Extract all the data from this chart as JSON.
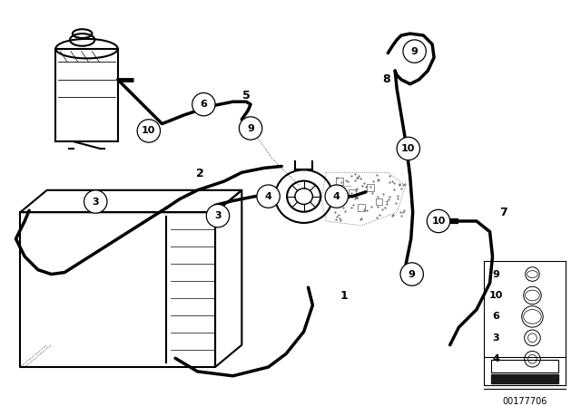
{
  "bg_color": "#ffffff",
  "diagram_id": "00177706",
  "lc": "#000000",
  "lw": 1.5,
  "tlw": 2.5,
  "figsize": [
    6.4,
    4.48
  ],
  "dpi": 100
}
